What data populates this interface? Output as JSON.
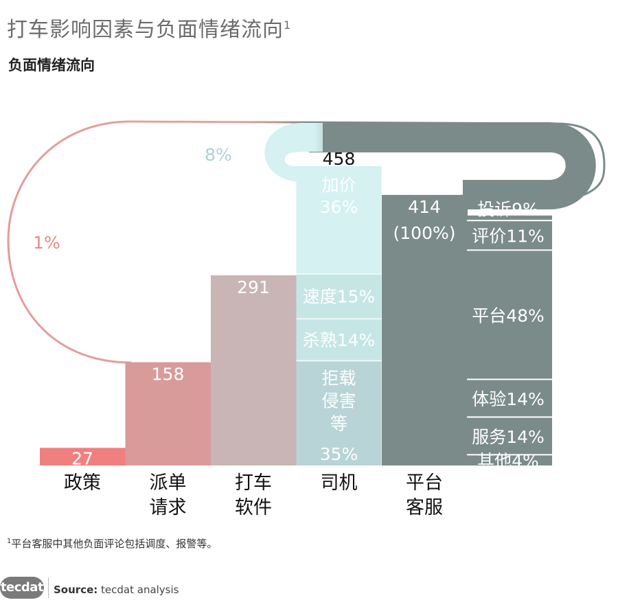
{
  "title": "打车影响因素与负面情绪流向",
  "title_note": "1",
  "subtitle": "负面情绪流向",
  "footnote_mark": "1",
  "footnote": "平台客服中其他负面评论包括调度、报警等。",
  "footer": {
    "logo_text": "tecdat",
    "source_label": "Source:",
    "source_text": "tecdat analysis"
  },
  "colors": {
    "policy": "#f08080",
    "dispatch": "#d99a9a",
    "app": "#c9b5b5",
    "driver_top": "#d5f1f2",
    "driver_mid": "#c6e6e6",
    "driver_bottom": "#b8d4d6",
    "platform": "#7b8b89"
  },
  "chart_data": {
    "type": "bar",
    "categories": [
      "政策",
      "派单\n请求",
      "打车\n软件",
      "司机",
      "平台\n客服"
    ],
    "values": [
      27,
      158,
      291,
      458,
      414
    ],
    "ylim": [
      0,
      500
    ],
    "value_labels": [
      "27",
      "158",
      "291",
      "458",
      "414"
    ],
    "platform_share_label": "(100%)",
    "driver_breakdown": [
      {
        "label": "拒载\n侵害\n等",
        "pct_label": "35%",
        "value": 35
      },
      {
        "label": "杀熟",
        "pct_label": "14%",
        "value": 14
      },
      {
        "label": "速度",
        "pct_label": "15%",
        "value": 15
      },
      {
        "label": "加价",
        "pct_label": "36%",
        "value": 36
      }
    ],
    "platform_breakdown": [
      {
        "label": "其他",
        "pct_label": "4%",
        "value": 4
      },
      {
        "label": "服务",
        "pct_label": "14%",
        "value": 14
      },
      {
        "label": "体验",
        "pct_label": "14%",
        "value": 14
      },
      {
        "label": "平台",
        "pct_label": "48%",
        "value": 48
      },
      {
        "label": "评价",
        "pct_label": "11%",
        "value": 11
      },
      {
        "label": "投诉",
        "pct_label": "9%",
        "value": 9
      }
    ],
    "flows": [
      {
        "from": "平台\n客服",
        "to": "政策",
        "pct_label": "1%"
      },
      {
        "from": "平台\n客服",
        "to": "司机",
        "pct_label": "8%"
      }
    ]
  }
}
